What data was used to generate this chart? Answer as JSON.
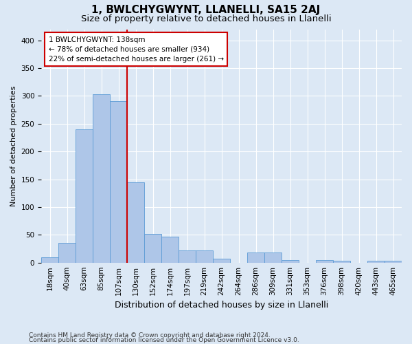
{
  "title": "1, BWLCHYGWYNT, LLANELLI, SA15 2AJ",
  "subtitle": "Size of property relative to detached houses in Llanelli",
  "xlabel": "Distribution of detached houses by size in Llanelli",
  "ylabel": "Number of detached properties",
  "categories": [
    "18sqm",
    "40sqm",
    "63sqm",
    "85sqm",
    "107sqm",
    "130sqm",
    "152sqm",
    "174sqm",
    "197sqm",
    "219sqm",
    "242sqm",
    "264sqm",
    "286sqm",
    "309sqm",
    "331sqm",
    "353sqm",
    "376sqm",
    "398sqm",
    "420sqm",
    "443sqm",
    "465sqm"
  ],
  "values": [
    10,
    35,
    240,
    303,
    290,
    145,
    52,
    47,
    22,
    22,
    7,
    0,
    18,
    18,
    5,
    0,
    5,
    3,
    0,
    3,
    3
  ],
  "bar_color": "#aec6e8",
  "bar_edge_color": "#5b9bd5",
  "vline_x_index": 5,
  "vline_color": "#cc0000",
  "annotation_text": "1 BWLCHYGWYNT: 138sqm\n← 78% of detached houses are smaller (934)\n22% of semi-detached houses are larger (261) →",
  "annotation_box_color": "#ffffff",
  "annotation_box_edge_color": "#cc0000",
  "ylim": [
    0,
    420
  ],
  "yticks": [
    0,
    50,
    100,
    150,
    200,
    250,
    300,
    350,
    400
  ],
  "background_color": "#dce8f5",
  "footer_line1": "Contains HM Land Registry data © Crown copyright and database right 2024.",
  "footer_line2": "Contains public sector information licensed under the Open Government Licence v3.0.",
  "title_fontsize": 11,
  "subtitle_fontsize": 9.5,
  "ylabel_fontsize": 8,
  "xlabel_fontsize": 9,
  "tick_fontsize": 7.5,
  "annotation_fontsize": 7.5,
  "footer_fontsize": 6.5
}
